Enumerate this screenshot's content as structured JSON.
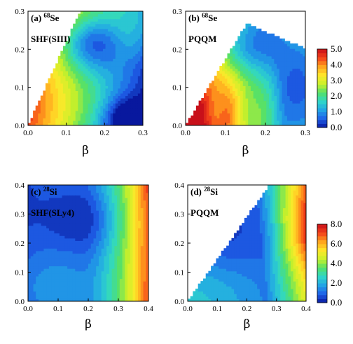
{
  "chart_data": [
    {
      "type": "heatmap",
      "panel_label": "(a)",
      "nucleus_mass": "68",
      "nucleus_symbol": "Se",
      "method": "SHF(SIII)",
      "xlabel": "β",
      "ylabel": "",
      "xlim": [
        0,
        0.3
      ],
      "ylim": [
        0,
        0.3
      ],
      "xticks": [
        "0.0",
        "0.1",
        "0.2",
        "0.3"
      ],
      "yticks": [
        "0.0",
        "0.1",
        "0.2",
        "0.3"
      ],
      "zlim": [
        0,
        5
      ],
      "levels": 20,
      "field": "a"
    },
    {
      "type": "heatmap",
      "panel_label": "(b)",
      "nucleus_mass": "68",
      "nucleus_symbol": "Se",
      "method": "PQQM",
      "xlabel": "β",
      "ylabel": "",
      "xlim": [
        0,
        0.3
      ],
      "ylim": [
        0,
        0.3
      ],
      "xticks": [
        "0.0",
        "0.1",
        "0.2",
        "0.3"
      ],
      "yticks": [
        "0.0",
        "0.1",
        "0.2",
        "0.3"
      ],
      "zlim": [
        0,
        5
      ],
      "levels": 20,
      "field": "b"
    },
    {
      "type": "heatmap",
      "panel_label": "(c)",
      "nucleus_mass": "28",
      "nucleus_symbol": "Si",
      "method": "SHF(SLy4)",
      "xlabel": "β",
      "ylabel": "",
      "xlim": [
        0,
        0.4
      ],
      "ylim": [
        0,
        0.4
      ],
      "xticks": [
        "0.0",
        "0.1",
        "0.2",
        "0.3",
        "0.4"
      ],
      "yticks": [
        "0.0",
        "0.1",
        "0.2",
        "0.3",
        "0.4"
      ],
      "zlim": [
        0,
        8
      ],
      "levels": 20,
      "field": "c"
    },
    {
      "type": "heatmap",
      "panel_label": "(d)",
      "nucleus_mass": "28",
      "nucleus_symbol": "Si",
      "method": "PQQM",
      "xlabel": "β",
      "ylabel": "",
      "xlim": [
        0,
        0.4
      ],
      "ylim": [
        0,
        0.4
      ],
      "xticks": [
        "0.0",
        "0.1",
        "0.2",
        "0.3",
        "0.4"
      ],
      "yticks": [
        "0.0",
        "0.1",
        "0.2",
        "0.3",
        "0.4"
      ],
      "zlim": [
        0,
        8
      ],
      "levels": 20,
      "field": "d"
    }
  ],
  "colorbars": [
    {
      "ticks": [
        "5.0",
        "4.0",
        "3.0",
        "2.0",
        "1.0",
        "0.0"
      ],
      "range": [
        0,
        5
      ]
    },
    {
      "ticks": [
        "8.0",
        "6.0",
        "4.0",
        "2.0",
        "0.0"
      ],
      "range": [
        0,
        8
      ]
    }
  ],
  "colors": {
    "stops": [
      "#08189e",
      "#1f5fe8",
      "#22a3e6",
      "#2fd6c9",
      "#52e06a",
      "#c8f02a",
      "#ffe82a",
      "#ffa41e",
      "#f4421a",
      "#c8101a"
    ]
  }
}
